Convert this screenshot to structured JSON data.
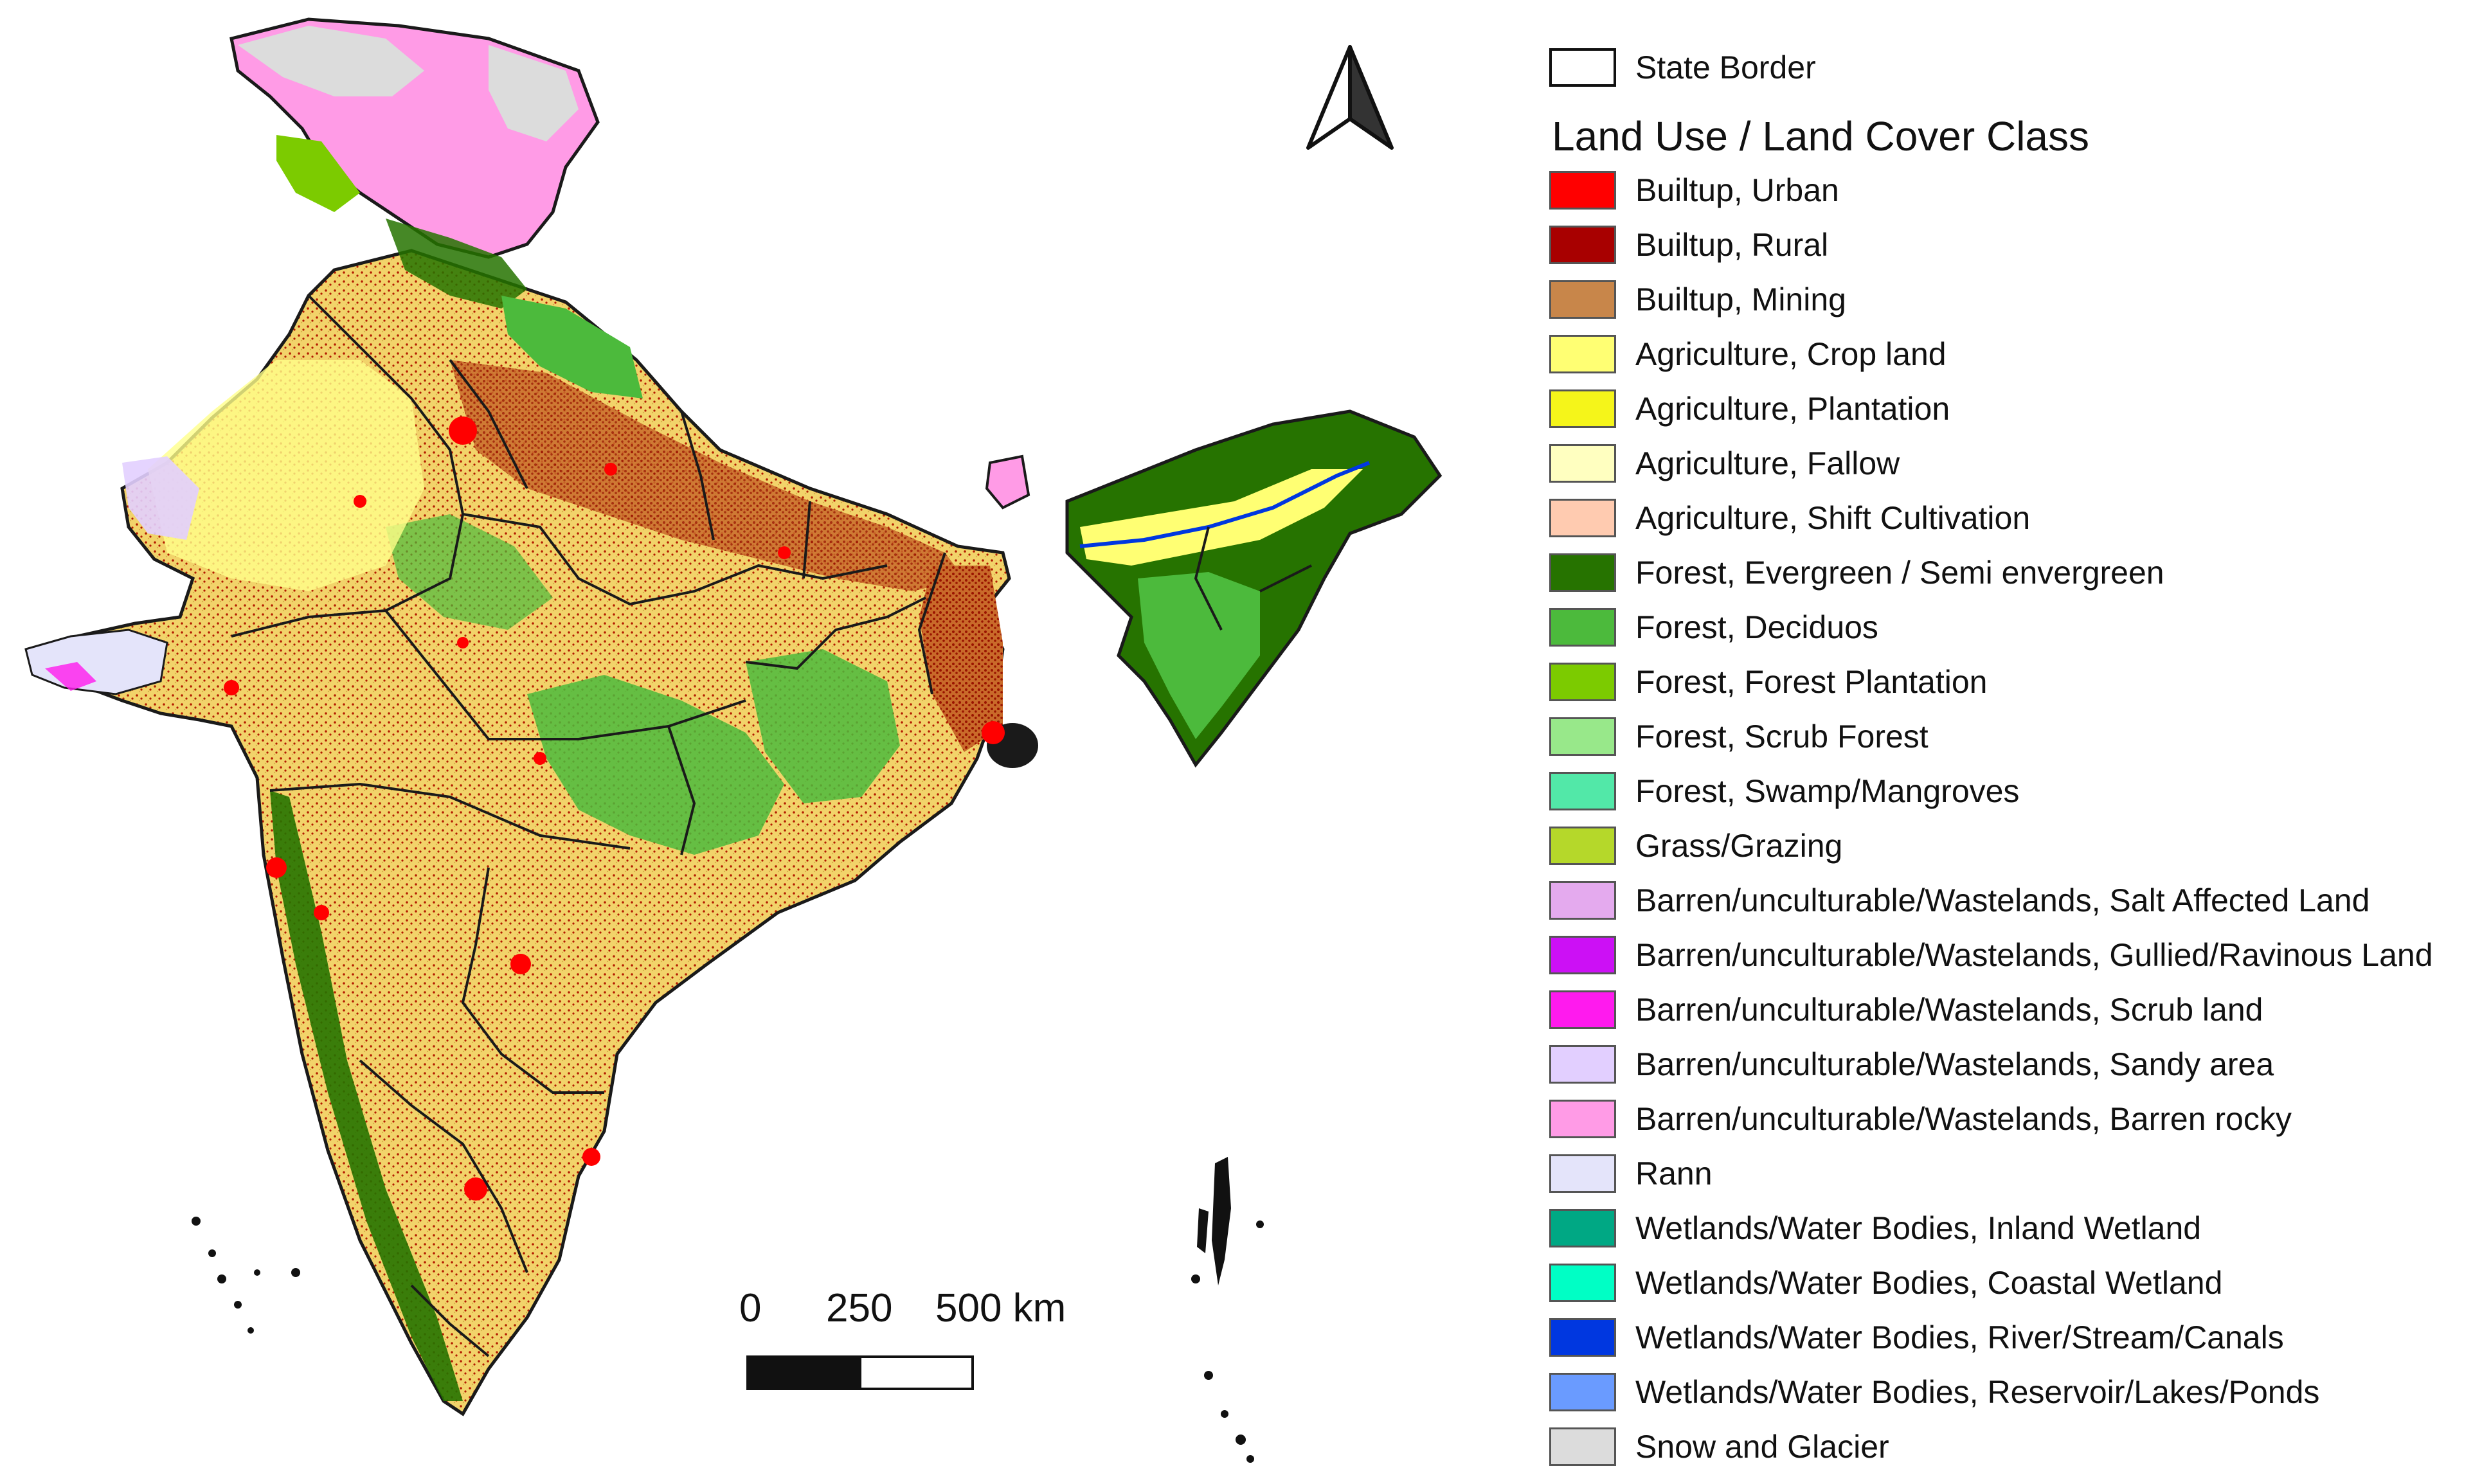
{
  "north_arrow": {
    "icon": "north-arrow-icon"
  },
  "scale_bar": {
    "labels": [
      "0",
      "250",
      "500 km"
    ]
  },
  "legend": {
    "border_item": {
      "label": "State Border"
    },
    "title": "Land Use / Land Cover Class",
    "classes": [
      {
        "label": "Builtup, Urban",
        "color": "#ff0000"
      },
      {
        "label": "Builtup, Rural",
        "color": "#a80000"
      },
      {
        "label": "Builtup, Mining",
        "color": "#c8864a"
      },
      {
        "label": "Agriculture, Crop land",
        "color": "#ffff73"
      },
      {
        "label": "Agriculture, Plantation",
        "color": "#f5f51a"
      },
      {
        "label": "Agriculture, Fallow",
        "color": "#ffffc0"
      },
      {
        "label": "Agriculture, Shift Cultivation",
        "color": "#ffcbb0"
      },
      {
        "label": "Forest, Evergreen / Semi envergreen",
        "color": "#267300"
      },
      {
        "label": "Forest, Deciduos",
        "color": "#4cba3c"
      },
      {
        "label": "Forest, Forest Plantation",
        "color": "#7ccb00"
      },
      {
        "label": "Forest, Scrub Forest",
        "color": "#98e88a"
      },
      {
        "label": "Forest, Swamp/Mangroves",
        "color": "#52e8a8"
      },
      {
        "label": "Grass/Grazing",
        "color": "#b5d82a"
      },
      {
        "label": "Barren/unculturable/Wastelands, Salt Affected Land",
        "color": "#e4aaee"
      },
      {
        "label": "Barren/unculturable/Wastelands, Gullied/Ravinous Land",
        "color": "#cc10f5"
      },
      {
        "label": "Barren/unculturable/Wastelands, Scrub land",
        "color": "#ff1aee"
      },
      {
        "label": "Barren/unculturable/Wastelands, Sandy area",
        "color": "#e2cfff"
      },
      {
        "label": "Barren/unculturable/Wastelands, Barren rocky",
        "color": "#ff9be6"
      },
      {
        "label": "Rann",
        "color": "#e4e4fa"
      },
      {
        "label": "Wetlands/Water Bodies, Inland Wetland",
        "color": "#00a884"
      },
      {
        "label": "Wetlands/Water Bodies, Coastal Wetland",
        "color": "#00ffc5"
      },
      {
        "label": "Wetlands/Water Bodies, River/Stream/Canals",
        "color": "#0037e0"
      },
      {
        "label": "Wetlands/Water Bodies, Reservoir/Lakes/Ponds",
        "color": "#6a9bff"
      },
      {
        "label": "Snow and Glacier",
        "color": "#dcdcdc"
      }
    ]
  }
}
